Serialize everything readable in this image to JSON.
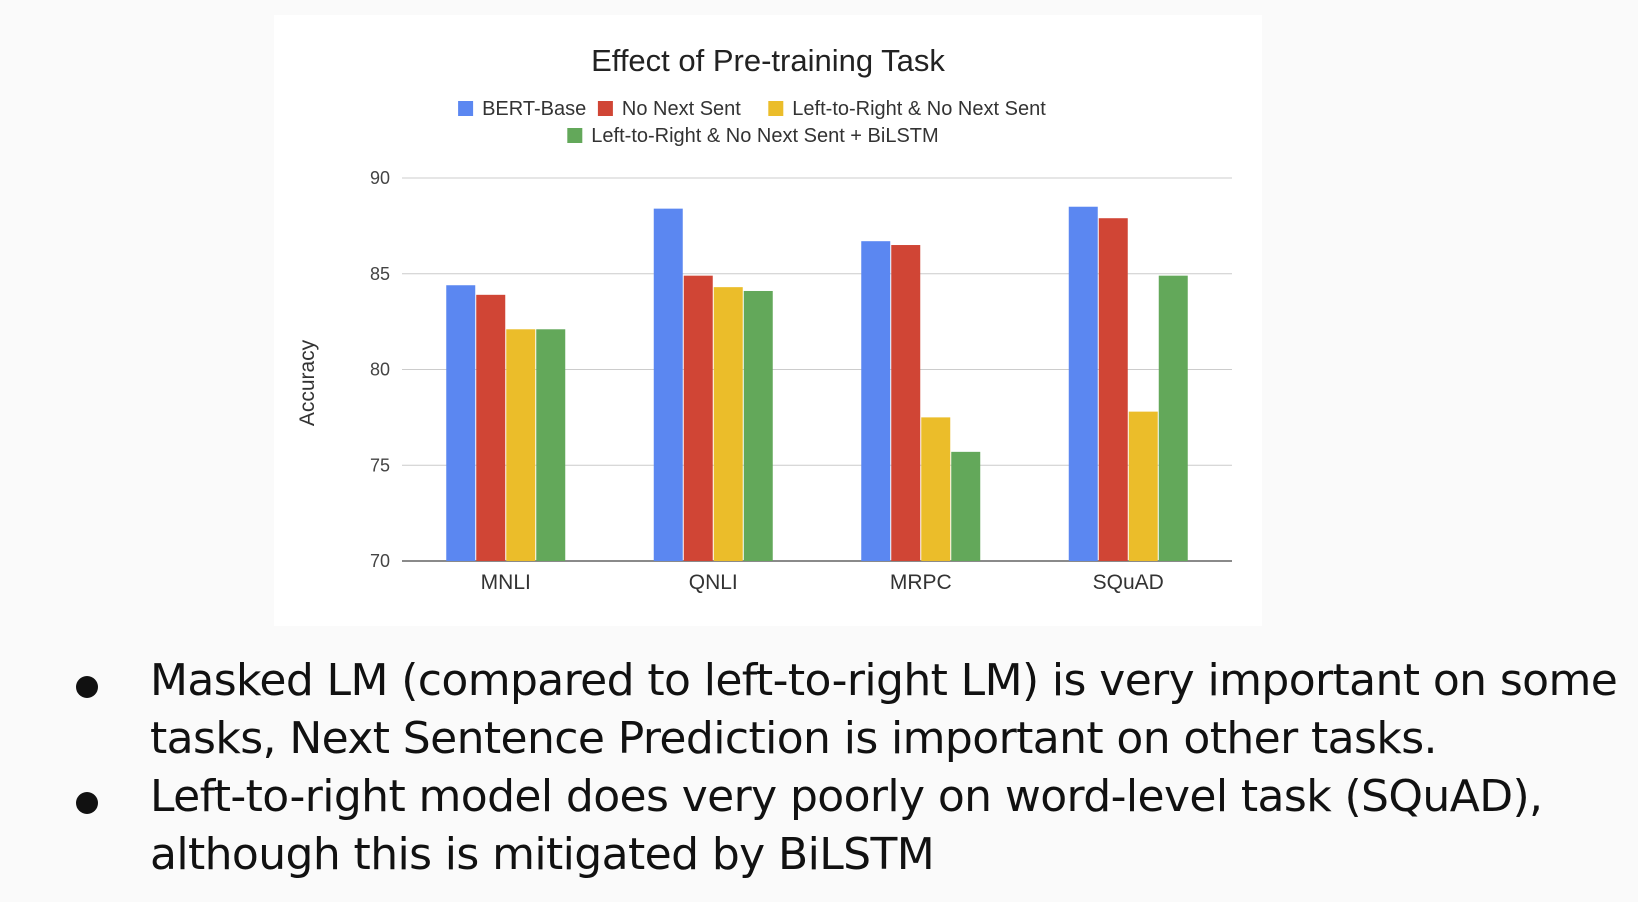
{
  "chart_data": {
    "type": "bar",
    "title": "Effect of Pre-training Task",
    "xlabel": "",
    "ylabel": "Accuracy",
    "ylim": [
      70,
      90
    ],
    "yticks": [
      70,
      75,
      80,
      85,
      90
    ],
    "grid": true,
    "legend_position": "top",
    "categories": [
      "MNLI",
      "QNLI",
      "MRPC",
      "SQuAD"
    ],
    "series": [
      {
        "name": "BERT-Base",
        "color": "#5b87f1",
        "values": [
          84.4,
          88.4,
          86.7,
          88.5
        ]
      },
      {
        "name": "No Next Sent",
        "color": "#d04535",
        "values": [
          83.9,
          84.9,
          86.5,
          87.9
        ]
      },
      {
        "name": "Left-to-Right & No Next Sent",
        "color": "#ebbd2a",
        "values": [
          82.1,
          84.3,
          77.5,
          77.8
        ]
      },
      {
        "name": "Left-to-Right & No Next Sent + BiLSTM",
        "color": "#63a85a",
        "values": [
          82.1,
          84.1,
          75.7,
          84.9
        ]
      }
    ]
  },
  "bullets": [
    "Masked LM (compared to left-to-right LM) is very important on some tasks, Next Sentence Prediction is important on other tasks.",
    "Left-to-right model does very poorly on word-level task (SQuAD), although this is mitigated by BiLSTM"
  ]
}
